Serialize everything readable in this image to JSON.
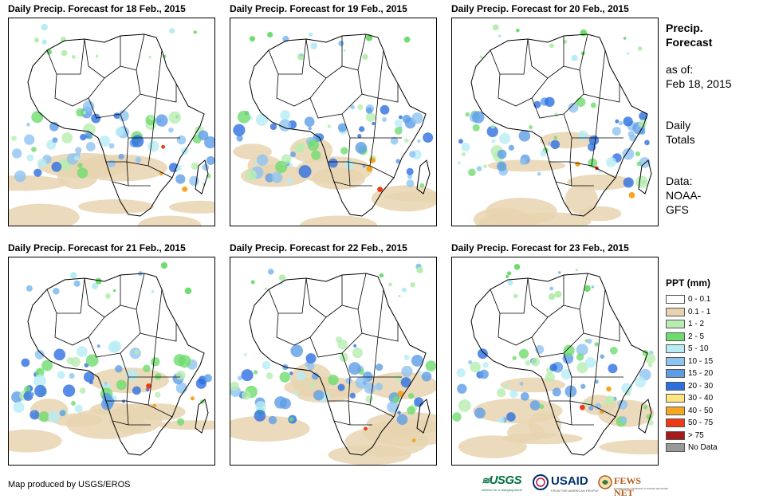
{
  "panels": [
    {
      "title": "Daily Precip. Forecast for 18 Feb., 2015"
    },
    {
      "title": "Daily Precip. Forecast for 19 Feb., 2015"
    },
    {
      "title": "Daily Precip. Forecast for 20 Feb., 2015"
    },
    {
      "title": "Daily Precip. Forecast for 21 Feb., 2015"
    },
    {
      "title": "Daily Precip. Forecast for 22 Feb., 2015"
    },
    {
      "title": "Daily Precip. Forecast for 23 Feb., 2015"
    }
  ],
  "sidebar": {
    "title_line1": "Precip.",
    "title_line2": "Forecast",
    "asof_line1": "as of:",
    "asof_line2": "Feb 18, 2015",
    "totals_line1": "Daily",
    "totals_line2": "Totals",
    "data_line1": "Data:",
    "data_line2": "NOAA-",
    "data_line3": "GFS"
  },
  "legend": {
    "title": "PPT (mm)",
    "items": [
      {
        "label": "0 - 0.1",
        "color": "#ffffff"
      },
      {
        "label": "0.1 - 1",
        "color": "#e8d3b0"
      },
      {
        "label": "1 - 2",
        "color": "#b7eeb0"
      },
      {
        "label": "2 - 5",
        "color": "#6edc6e"
      },
      {
        "label": "5 - 10",
        "color": "#b7ecf5"
      },
      {
        "label": "10 - 15",
        "color": "#8fc3f0"
      },
      {
        "label": "15 - 20",
        "color": "#5e9de6"
      },
      {
        "label": "20 - 30",
        "color": "#2e6fe0"
      },
      {
        "label": "30 - 40",
        "color": "#ffe680"
      },
      {
        "label": "40 - 50",
        "color": "#f5a623"
      },
      {
        "label": "50 - 75",
        "color": "#ee3a14"
      },
      {
        "label": "> 75",
        "color": "#a51a1a"
      },
      {
        "label": "No Data",
        "color": "#999999"
      }
    ]
  },
  "credit": "Map produced by USGS/EROS",
  "logos": {
    "usgs": "USGS",
    "usgs_tagline": "science for a changing world",
    "usaid": "USAID",
    "usaid_tagline": "FROM THE AMERICAN PEOPLE",
    "fewsnet": "FEWS NET",
    "fewsnet_tagline": "FAMINE EARLY WARNING SYSTEMS NETWORK"
  }
}
